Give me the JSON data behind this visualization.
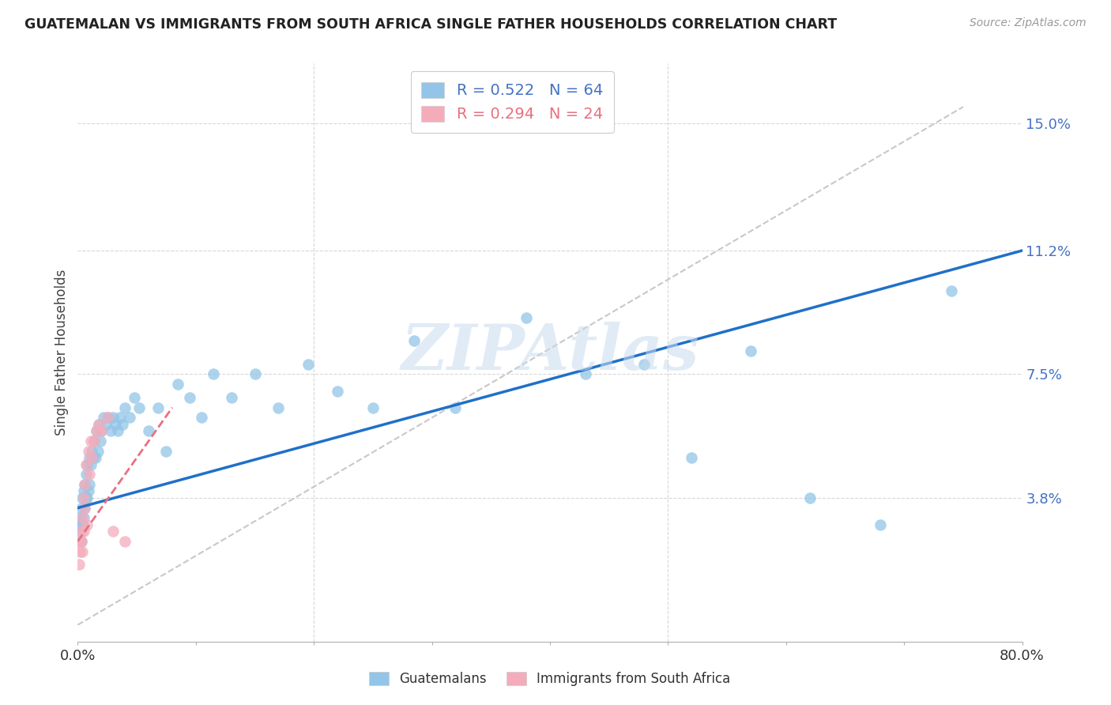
{
  "title": "GUATEMALAN VS IMMIGRANTS FROM SOUTH AFRICA SINGLE FATHER HOUSEHOLDS CORRELATION CHART",
  "source": "Source: ZipAtlas.com",
  "ylabel": "Single Father Households",
  "xlim": [
    0.0,
    0.8
  ],
  "ylim": [
    -0.005,
    0.168
  ],
  "yticks": [
    0.038,
    0.075,
    0.112,
    0.15
  ],
  "ytick_labels": [
    "3.8%",
    "7.5%",
    "11.2%",
    "15.0%"
  ],
  "xticks": [
    0.0,
    0.1,
    0.2,
    0.3,
    0.4,
    0.5,
    0.6,
    0.7,
    0.8
  ],
  "blue_R": 0.522,
  "blue_N": 64,
  "pink_R": 0.294,
  "pink_N": 24,
  "blue_color": "#92C5E8",
  "pink_color": "#F4ACBB",
  "blue_line_color": "#2070C8",
  "pink_line_color": "#E87080",
  "ref_line_color": "#C8C8C8",
  "watermark": "ZIPAtlas",
  "blue_line_x0": 0.0,
  "blue_line_y0": 0.035,
  "blue_line_x1": 0.8,
  "blue_line_y1": 0.112,
  "pink_line_x0": 0.0,
  "pink_line_y0": 0.025,
  "pink_line_x1": 0.08,
  "pink_line_y1": 0.065,
  "ref_line_x0": 0.0,
  "ref_line_y0": 0.0,
  "ref_line_x1": 0.75,
  "ref_line_y1": 0.155,
  "blue_x": [
    0.001,
    0.002,
    0.002,
    0.003,
    0.003,
    0.004,
    0.004,
    0.005,
    0.005,
    0.006,
    0.006,
    0.007,
    0.007,
    0.008,
    0.008,
    0.009,
    0.01,
    0.01,
    0.011,
    0.012,
    0.013,
    0.014,
    0.015,
    0.016,
    0.017,
    0.018,
    0.019,
    0.02,
    0.022,
    0.024,
    0.026,
    0.028,
    0.03,
    0.032,
    0.034,
    0.036,
    0.038,
    0.04,
    0.044,
    0.048,
    0.052,
    0.06,
    0.068,
    0.075,
    0.085,
    0.095,
    0.105,
    0.115,
    0.13,
    0.15,
    0.17,
    0.195,
    0.22,
    0.25,
    0.285,
    0.32,
    0.38,
    0.43,
    0.48,
    0.52,
    0.57,
    0.62,
    0.68,
    0.74
  ],
  "blue_y": [
    0.03,
    0.028,
    0.032,
    0.025,
    0.035,
    0.03,
    0.038,
    0.032,
    0.04,
    0.035,
    0.042,
    0.038,
    0.045,
    0.038,
    0.048,
    0.04,
    0.042,
    0.05,
    0.048,
    0.052,
    0.05,
    0.055,
    0.05,
    0.058,
    0.052,
    0.06,
    0.055,
    0.058,
    0.062,
    0.06,
    0.062,
    0.058,
    0.062,
    0.06,
    0.058,
    0.062,
    0.06,
    0.065,
    0.062,
    0.068,
    0.065,
    0.058,
    0.065,
    0.052,
    0.072,
    0.068,
    0.062,
    0.075,
    0.068,
    0.075,
    0.065,
    0.078,
    0.07,
    0.065,
    0.085,
    0.065,
    0.092,
    0.075,
    0.078,
    0.05,
    0.082,
    0.038,
    0.03,
    0.1
  ],
  "pink_x": [
    0.001,
    0.002,
    0.002,
    0.003,
    0.003,
    0.004,
    0.004,
    0.005,
    0.005,
    0.006,
    0.006,
    0.007,
    0.008,
    0.009,
    0.01,
    0.011,
    0.012,
    0.014,
    0.016,
    0.018,
    0.02,
    0.025,
    0.03,
    0.04
  ],
  "pink_y": [
    0.018,
    0.022,
    0.025,
    0.028,
    0.025,
    0.032,
    0.022,
    0.038,
    0.028,
    0.042,
    0.035,
    0.048,
    0.03,
    0.052,
    0.045,
    0.055,
    0.05,
    0.055,
    0.058,
    0.06,
    0.058,
    0.062,
    0.028,
    0.025
  ]
}
